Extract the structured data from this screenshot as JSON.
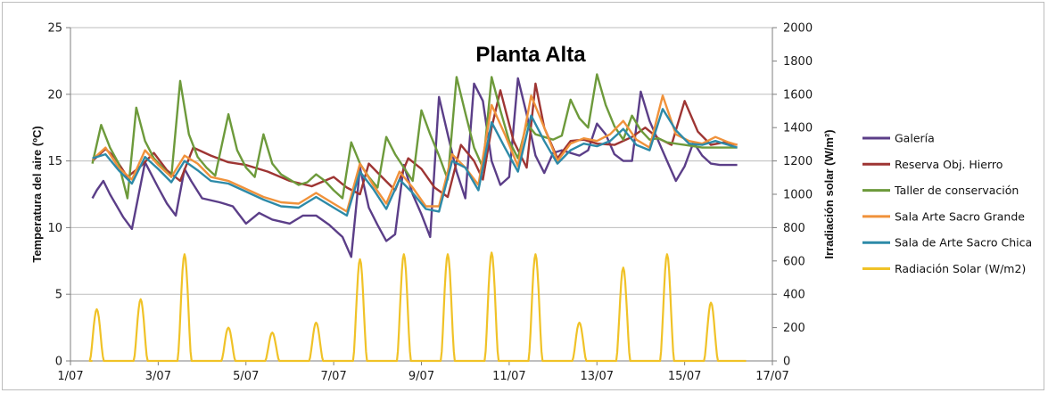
{
  "chart_data": {
    "type": "line",
    "title": "Planta Alta",
    "ylabel": "Temperatura del aire (ºC)",
    "y2label": "Irradiación solar (W/m²)",
    "xlabel": "",
    "xlim": [
      1,
      17
    ],
    "ylim": [
      0,
      25
    ],
    "y2lim": [
      0,
      2000
    ],
    "x_ticks": [
      "1/07",
      "3/07",
      "5/07",
      "7/07",
      "9/07",
      "11/07",
      "13/07",
      "15/07",
      "17/07"
    ],
    "y_ticks": [
      "0",
      "5",
      "10",
      "15",
      "20",
      "25"
    ],
    "y2_ticks": [
      "0",
      "200",
      "400",
      "600",
      "800",
      "1000",
      "1200",
      "1400",
      "1600",
      "1800",
      "2000"
    ],
    "grid": "horizontal",
    "legend_position": "right",
    "series": [
      {
        "name": "Galería",
        "axis": "left",
        "color": "#5b3e88",
        "x": [
          1.5,
          1.6,
          1.75,
          1.9,
          2.2,
          2.4,
          2.7,
          3.0,
          3.2,
          3.4,
          3.6,
          3.75,
          4.0,
          4.4,
          4.7,
          5.0,
          5.3,
          5.6,
          6.0,
          6.3,
          6.6,
          6.9,
          7.2,
          7.4,
          7.6,
          7.8,
          8.0,
          8.2,
          8.4,
          8.6,
          8.8,
          9.0,
          9.2,
          9.4,
          9.6,
          9.8,
          10.0,
          10.2,
          10.4,
          10.6,
          10.8,
          11.0,
          11.2,
          11.4,
          11.6,
          11.8,
          12.0,
          12.2,
          12.4,
          12.6,
          12.8,
          13.0,
          13.2,
          13.4,
          13.6,
          13.8,
          14.0,
          14.2,
          14.4,
          14.6,
          14.8,
          15.0,
          15.2,
          15.4,
          15.6,
          15.8,
          16.0,
          16.2
        ],
        "values": [
          12.2,
          12.8,
          13.5,
          12.5,
          10.8,
          9.9,
          14.9,
          13.0,
          11.8,
          10.9,
          14.4,
          13.5,
          12.2,
          11.9,
          11.6,
          10.3,
          11.1,
          10.6,
          10.3,
          10.9,
          10.9,
          10.2,
          9.3,
          7.8,
          14.5,
          11.5,
          10.2,
          9.0,
          9.5,
          14.7,
          12.5,
          11.0,
          9.3,
          19.8,
          17.0,
          14.2,
          12.2,
          20.8,
          19.5,
          15.0,
          13.2,
          13.8,
          21.2,
          18.5,
          15.4,
          14.1,
          15.6,
          15.8,
          15.6,
          15.4,
          15.8,
          17.8,
          17.0,
          15.5,
          15.0,
          15.0,
          20.2,
          18.0,
          16.5,
          15.0,
          13.5,
          14.6,
          16.4,
          15.4,
          14.8,
          14.7,
          14.7,
          14.7
        ]
      },
      {
        "name": "Reserva Obj. Hierro",
        "axis": "left",
        "color": "#9e3533",
        "x": [
          1.5,
          1.8,
          2.0,
          2.3,
          2.6,
          2.9,
          3.2,
          3.5,
          3.8,
          4.2,
          4.6,
          5.0,
          5.5,
          6.0,
          6.5,
          7.0,
          7.3,
          7.6,
          7.8,
          8.1,
          8.4,
          8.7,
          9.0,
          9.3,
          9.6,
          9.9,
          10.2,
          10.4,
          10.6,
          10.8,
          11.1,
          11.4,
          11.6,
          11.8,
          12.1,
          12.4,
          12.7,
          13.0,
          13.4,
          13.8,
          14.1,
          14.4,
          14.7,
          15.0,
          15.3,
          15.6,
          15.9,
          16.2
        ],
        "values": [
          15.0,
          15.9,
          15.3,
          13.8,
          14.6,
          15.6,
          14.3,
          13.5,
          16.0,
          15.4,
          14.9,
          14.7,
          14.2,
          13.5,
          13.1,
          13.8,
          13.0,
          12.5,
          14.8,
          13.8,
          12.8,
          15.2,
          14.4,
          13.0,
          12.3,
          16.2,
          15.0,
          13.6,
          17.5,
          20.3,
          16.5,
          14.5,
          20.8,
          17.5,
          15.2,
          16.5,
          16.6,
          16.3,
          16.2,
          16.8,
          17.5,
          16.7,
          16.2,
          19.5,
          17.2,
          16.2,
          16.4,
          16.2
        ]
      },
      {
        "name": "Taller de conservación",
        "axis": "left",
        "color": "#6d9a3b",
        "x": [
          1.5,
          1.7,
          1.9,
          2.1,
          2.3,
          2.5,
          2.7,
          2.9,
          3.1,
          3.3,
          3.5,
          3.7,
          3.9,
          4.1,
          4.3,
          4.6,
          4.8,
          5.0,
          5.2,
          5.4,
          5.6,
          5.8,
          6.0,
          6.2,
          6.4,
          6.6,
          6.8,
          7.0,
          7.2,
          7.4,
          7.6,
          7.8,
          8.0,
          8.2,
          8.4,
          8.6,
          8.8,
          9.0,
          9.2,
          9.4,
          9.6,
          9.8,
          10.0,
          10.2,
          10.4,
          10.6,
          10.8,
          11.0,
          11.2,
          11.4,
          11.6,
          11.8,
          12.0,
          12.2,
          12.4,
          12.6,
          12.8,
          13.0,
          13.2,
          13.4,
          13.6,
          13.8,
          14.0,
          14.2,
          14.4,
          14.6,
          14.8,
          15.0,
          15.2,
          15.4,
          15.6,
          15.8,
          16.0,
          16.2
        ],
        "values": [
          14.8,
          17.7,
          16.0,
          14.8,
          12.2,
          19.0,
          16.5,
          15.2,
          14.5,
          13.8,
          21.0,
          17.0,
          15.3,
          14.5,
          13.9,
          18.5,
          15.8,
          14.5,
          13.8,
          17.0,
          14.8,
          14.0,
          13.6,
          13.2,
          13.4,
          14.0,
          13.5,
          12.8,
          12.2,
          16.4,
          14.8,
          13.8,
          13.0,
          16.8,
          15.5,
          14.5,
          13.5,
          18.8,
          17.0,
          15.4,
          13.6,
          21.3,
          18.6,
          16.0,
          14.5,
          21.3,
          18.8,
          16.5,
          15.2,
          17.8,
          17.0,
          16.8,
          16.6,
          16.9,
          19.6,
          18.2,
          17.5,
          21.5,
          19.2,
          17.6,
          16.6,
          18.4,
          17.3,
          16.6,
          16.7,
          16.4,
          16.3,
          16.2,
          16.1,
          16.0,
          16.0,
          16.0,
          16.0,
          16.0
        ]
      },
      {
        "name": "Sala Arte Sacro Grande",
        "axis": "left",
        "color": "#f0923b",
        "x": [
          1.5,
          1.8,
          2.1,
          2.4,
          2.7,
          3.0,
          3.3,
          3.6,
          3.9,
          4.2,
          4.6,
          5.0,
          5.4,
          5.8,
          6.2,
          6.6,
          7.0,
          7.3,
          7.6,
          7.9,
          8.2,
          8.5,
          8.8,
          9.1,
          9.4,
          9.7,
          10.0,
          10.3,
          10.6,
          10.9,
          11.2,
          11.5,
          11.8,
          12.1,
          12.4,
          12.7,
          13.0,
          13.3,
          13.6,
          13.9,
          14.2,
          14.5,
          14.8,
          15.1,
          15.4,
          15.7,
          16.0,
          16.2
        ],
        "values": [
          15.1,
          16.0,
          14.5,
          13.6,
          15.8,
          14.7,
          13.8,
          15.4,
          14.8,
          13.8,
          13.5,
          12.9,
          12.3,
          11.9,
          11.8,
          12.6,
          11.8,
          11.2,
          14.8,
          13.2,
          11.8,
          14.2,
          13.0,
          11.6,
          11.6,
          15.5,
          14.5,
          13.2,
          19.2,
          17.0,
          14.6,
          19.9,
          17.5,
          15.0,
          16.3,
          16.7,
          16.5,
          17.0,
          18.0,
          16.6,
          16.0,
          19.9,
          17.0,
          16.5,
          16.3,
          16.8,
          16.4,
          16.2
        ]
      },
      {
        "name": "Sala de Arte Sacro Chica",
        "axis": "left",
        "color": "#2d8aa8",
        "x": [
          1.5,
          1.8,
          2.1,
          2.4,
          2.7,
          3.0,
          3.3,
          3.6,
          3.9,
          4.2,
          4.6,
          5.0,
          5.4,
          5.8,
          6.2,
          6.6,
          7.0,
          7.3,
          7.6,
          7.9,
          8.2,
          8.5,
          8.8,
          9.1,
          9.4,
          9.7,
          10.0,
          10.3,
          10.6,
          10.9,
          11.2,
          11.5,
          11.8,
          12.1,
          12.4,
          12.7,
          13.0,
          13.3,
          13.6,
          13.9,
          14.2,
          14.5,
          14.8,
          15.1,
          15.4,
          15.7,
          16.0,
          16.2
        ],
        "values": [
          15.2,
          15.5,
          14.3,
          13.3,
          15.3,
          14.4,
          13.4,
          15.0,
          14.3,
          13.5,
          13.3,
          12.7,
          12.1,
          11.6,
          11.5,
          12.3,
          11.5,
          10.9,
          14.2,
          12.9,
          11.4,
          13.6,
          12.6,
          11.4,
          11.2,
          15.0,
          14.5,
          12.8,
          17.9,
          16.0,
          14.2,
          18.4,
          16.5,
          14.8,
          15.8,
          16.3,
          16.1,
          16.5,
          17.4,
          16.2,
          15.8,
          18.9,
          17.3,
          16.3,
          16.2,
          16.5,
          16.2,
          16.0
        ]
      },
      {
        "name": "Radiación Solar (W/m2)",
        "axis": "right",
        "color": "#f0c227",
        "peaks": [
          {
            "day": 1.6,
            "value": 310
          },
          {
            "day": 2.6,
            "value": 370
          },
          {
            "day": 3.6,
            "value": 640
          },
          {
            "day": 4.6,
            "value": 200
          },
          {
            "day": 5.6,
            "value": 170
          },
          {
            "day": 6.6,
            "value": 230
          },
          {
            "day": 7.6,
            "value": 610
          },
          {
            "day": 8.6,
            "value": 640
          },
          {
            "day": 9.6,
            "value": 640
          },
          {
            "day": 10.6,
            "value": 650
          },
          {
            "day": 11.6,
            "value": 640
          },
          {
            "day": 12.6,
            "value": 230
          },
          {
            "day": 13.6,
            "value": 560
          },
          {
            "day": 14.6,
            "value": 640
          },
          {
            "day": 15.6,
            "value": 350
          }
        ]
      }
    ]
  }
}
